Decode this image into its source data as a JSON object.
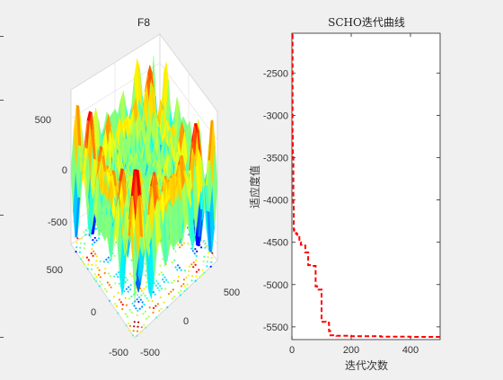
{
  "chart_data": [
    {
      "type": "surface3d",
      "title": "F8",
      "xlabel": "",
      "ylabel": "",
      "zlabel": "",
      "x_ticks": [
        "-500",
        "0",
        "500"
      ],
      "y_ticks": [
        "-500",
        "0",
        "500"
      ],
      "z_ticks": [
        "500",
        "0",
        "-500"
      ],
      "xlim": [
        -500,
        500
      ],
      "ylim": [
        -500,
        500
      ],
      "zlim": [
        -840,
        840
      ],
      "surface": "Schwefel function F8: z = -x·sin(√|x|) - y·sin(√|y|), jet colormap, with contour projection on floor",
      "grid": true
    },
    {
      "type": "line",
      "title": "SCHO迭代曲线",
      "xlabel": "迭代次数",
      "ylabel": "适应度值",
      "xlim": [
        0,
        500
      ],
      "ylim": [
        -5650,
        -2030
      ],
      "x_ticks": [
        "0",
        "200",
        "400"
      ],
      "y_ticks": [
        "-2500",
        "-3000",
        "-3500",
        "-4000",
        "-4500",
        "-5000",
        "-5500"
      ],
      "series": [
        {
          "name": "",
          "color": "#ff0000",
          "style": "dashed",
          "x": [
            1,
            2,
            3,
            4,
            5,
            6,
            8,
            10,
            14,
            18,
            25,
            30,
            36,
            45,
            55,
            65,
            80,
            85,
            90,
            100,
            115,
            125,
            130,
            150,
            200,
            300,
            400,
            500
          ],
          "y": [
            -2050,
            -3200,
            -3450,
            -3500,
            -4050,
            -4350,
            -4370,
            -4390,
            -4400,
            -4410,
            -4500,
            -4530,
            -4540,
            -4620,
            -4770,
            -4780,
            -5020,
            -5050,
            -5060,
            -5440,
            -5450,
            -5550,
            -5600,
            -5605,
            -5610,
            -5615,
            -5618,
            -5618
          ]
        }
      ],
      "grid": false
    }
  ]
}
